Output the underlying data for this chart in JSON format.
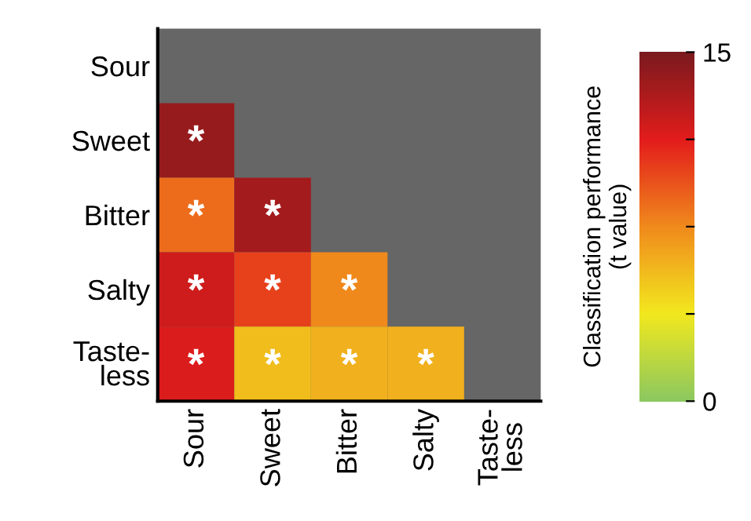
{
  "chart_data": {
    "type": "heatmap",
    "categories": [
      "Sour",
      "Sweet",
      "Bitter",
      "Salty",
      "Taste-\nless"
    ],
    "y_categories": [
      "Sour",
      "Sweet",
      "Bitter",
      "Salty",
      "Taste-\nless"
    ],
    "cells": [
      [
        null,
        null,
        null,
        null,
        null
      ],
      [
        14,
        null,
        null,
        null,
        null
      ],
      [
        8.5,
        13.5,
        null,
        null,
        null
      ],
      [
        12,
        10,
        7.5,
        null,
        null
      ],
      [
        11.5,
        5.5,
        6,
        6,
        null
      ]
    ],
    "cell_labels": [
      [
        null,
        null,
        null,
        null,
        null
      ],
      [
        "*",
        null,
        null,
        null,
        null
      ],
      [
        "*",
        "*",
        null,
        null,
        null
      ],
      [
        "*",
        "*",
        "*",
        null,
        null
      ],
      [
        "*",
        "*",
        "*",
        "*",
        null
      ]
    ],
    "clabel": "Classification performance\n(t value)",
    "clim": [
      0,
      15
    ],
    "cticks": [
      {
        "value": 0,
        "label": "0"
      },
      {
        "value": 3.75,
        "label": null
      },
      {
        "value": 7.5,
        "label": null
      },
      {
        "value": 11.25,
        "label": null
      },
      {
        "value": 15,
        "label": "15"
      }
    ]
  }
}
